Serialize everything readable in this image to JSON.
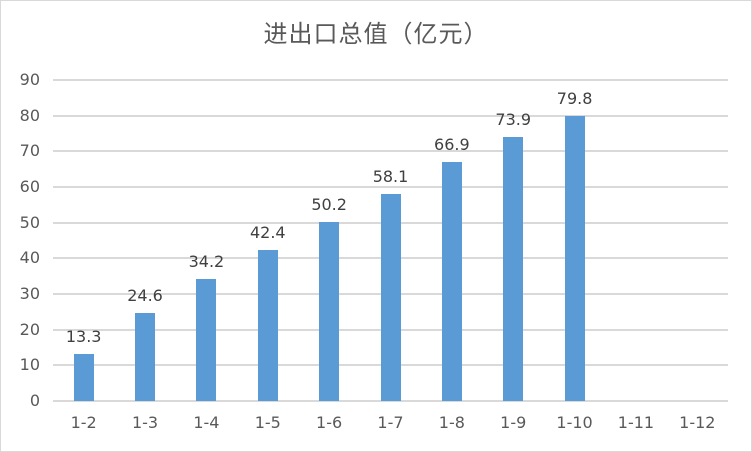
{
  "chart_data": {
    "type": "bar",
    "title": "进出口总值（亿元）",
    "xlabel": "",
    "ylabel": "",
    "categories": [
      "1-2",
      "1-3",
      "1-4",
      "1-5",
      "1-6",
      "1-7",
      "1-8",
      "1-9",
      "1-10",
      "1-11",
      "1-12"
    ],
    "values": [
      13.3,
      24.6,
      34.2,
      42.4,
      50.2,
      58.1,
      66.9,
      73.9,
      79.8,
      null,
      null
    ],
    "data_labels": [
      "13.3",
      "24.6",
      "34.2",
      "42.4",
      "50.2",
      "58.1",
      "66.9",
      "73.9",
      "79.8",
      "",
      ""
    ],
    "ylim": [
      0,
      90
    ],
    "yticks": [
      "0",
      "10",
      "20",
      "30",
      "40",
      "50",
      "60",
      "70",
      "80",
      "90"
    ],
    "grid": true,
    "legend": "none",
    "bar_color": "#5b9bd5"
  }
}
